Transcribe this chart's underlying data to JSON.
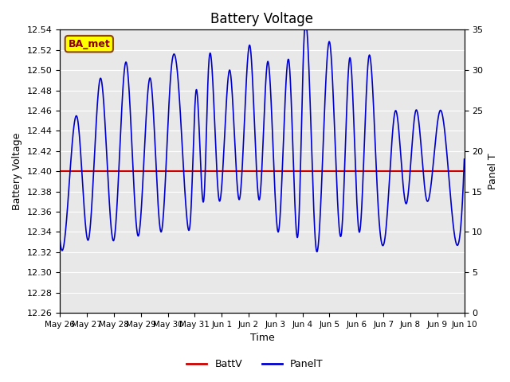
{
  "title": "Battery Voltage",
  "xlabel": "Time",
  "ylabel_left": "Battery Voltage",
  "ylabel_right": "Panel T",
  "ylim_left": [
    12.26,
    12.54
  ],
  "ylim_right": [
    0,
    35
  ],
  "yticks_left": [
    12.26,
    12.28,
    12.3,
    12.32,
    12.34,
    12.36,
    12.38,
    12.4,
    12.42,
    12.44,
    12.46,
    12.48,
    12.5,
    12.52,
    12.54
  ],
  "yticks_right": [
    0,
    5,
    10,
    15,
    20,
    25,
    30,
    35
  ],
  "batt_v": 12.4,
  "batt_color": "#cc0000",
  "panel_color": "#0000cc",
  "bg_color": "#e8e8e8",
  "annotation_text": "BA_met",
  "annotation_bg": "#ffff00",
  "annotation_border": "#8b4513",
  "annotation_text_color": "#8b0000",
  "legend_labels": [
    "BattV",
    "PanelT"
  ],
  "x_tick_labels": [
    "May 26",
    "May 27",
    "May 28",
    "May 29",
    "May 30",
    "May 31",
    "Jun 1",
    "Jun 2",
    "Jun 3",
    "Jun 4",
    "Jun 5",
    "Jun 6",
    "Jun 7",
    "Jun 8",
    "Jun 9",
    "Jun 10"
  ]
}
